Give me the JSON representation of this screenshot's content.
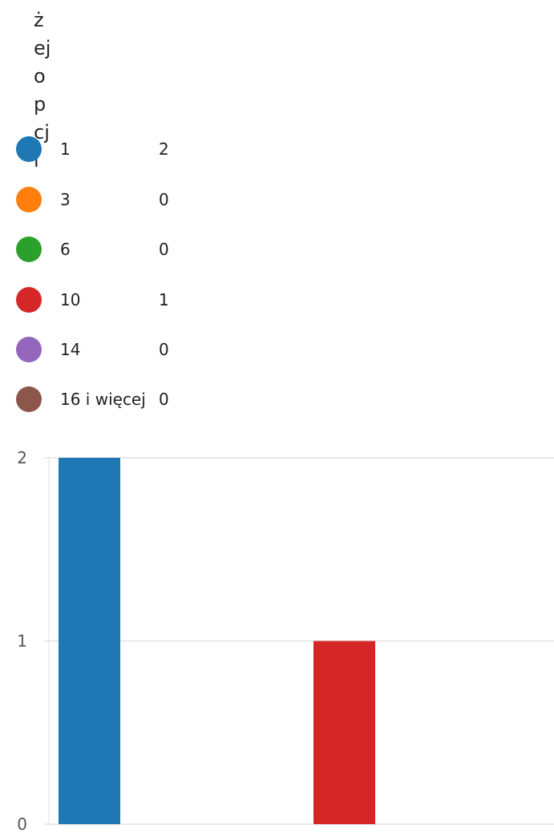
{
  "title_fragments": [
    "ż",
    "ej",
    "o",
    "p",
    "cj",
    "i"
  ],
  "chart_data": {
    "type": "bar",
    "categories": [
      "1",
      "3",
      "6",
      "10",
      "14",
      "16 i więcej"
    ],
    "values": [
      2,
      0,
      0,
      1,
      0,
      0
    ],
    "colors": [
      "#1f77b4",
      "#ff7f0e",
      "#2ca02c",
      "#d62728",
      "#9467bd",
      "#8c564b"
    ],
    "ylim": [
      0,
      2
    ],
    "yticks": [
      "0",
      "1",
      "2"
    ],
    "grid": true,
    "legend_position": "top-left"
  }
}
